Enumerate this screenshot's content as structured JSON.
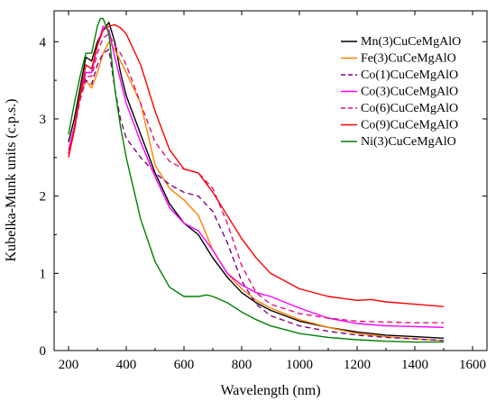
{
  "chart_data": {
    "type": "line",
    "title": "",
    "xlabel": "Wavelength (nm)",
    "ylabel": "Kubelka-Munk units (c.p.s.)",
    "xlim": [
      150,
      1650
    ],
    "ylim": [
      0,
      4.4
    ],
    "xticks": [
      200,
      400,
      600,
      800,
      1000,
      1200,
      1400,
      1600
    ],
    "yticks": [
      0,
      1,
      2,
      3,
      4
    ],
    "grid": false,
    "legend_position": "top-right",
    "series": [
      {
        "name": "Mn(3)CuCeMgAlO",
        "color": "#000000",
        "dash": "solid",
        "points": [
          [
            200,
            2.7
          ],
          [
            220,
            3.0
          ],
          [
            240,
            3.4
          ],
          [
            260,
            3.8
          ],
          [
            280,
            3.75
          ],
          [
            300,
            4.0
          ],
          [
            320,
            4.15
          ],
          [
            340,
            4.25
          ],
          [
            360,
            4.0
          ],
          [
            380,
            3.6
          ],
          [
            400,
            3.3
          ],
          [
            450,
            2.8
          ],
          [
            500,
            2.3
          ],
          [
            550,
            1.9
          ],
          [
            600,
            1.65
          ],
          [
            650,
            1.5
          ],
          [
            700,
            1.2
          ],
          [
            750,
            0.95
          ],
          [
            800,
            0.75
          ],
          [
            850,
            0.62
          ],
          [
            900,
            0.52
          ],
          [
            1000,
            0.38
          ],
          [
            1100,
            0.3
          ],
          [
            1200,
            0.24
          ],
          [
            1300,
            0.2
          ],
          [
            1400,
            0.18
          ],
          [
            1500,
            0.16
          ]
        ]
      },
      {
        "name": "Fe(3)CuCeMgAlO",
        "color": "#ff8000",
        "dash": "solid",
        "points": [
          [
            200,
            2.55
          ],
          [
            220,
            2.9
          ],
          [
            240,
            3.3
          ],
          [
            260,
            3.5
          ],
          [
            280,
            3.4
          ],
          [
            300,
            3.6
          ],
          [
            320,
            3.85
          ],
          [
            340,
            4.0
          ],
          [
            360,
            3.9
          ],
          [
            380,
            3.75
          ],
          [
            400,
            3.6
          ],
          [
            450,
            3.2
          ],
          [
            500,
            2.4
          ],
          [
            550,
            2.1
          ],
          [
            600,
            1.95
          ],
          [
            650,
            1.75
          ],
          [
            700,
            1.3
          ],
          [
            750,
            1.0
          ],
          [
            800,
            0.8
          ],
          [
            850,
            0.65
          ],
          [
            900,
            0.55
          ],
          [
            1000,
            0.4
          ],
          [
            1100,
            0.3
          ],
          [
            1200,
            0.22
          ],
          [
            1300,
            0.18
          ],
          [
            1400,
            0.15
          ],
          [
            1500,
            0.13
          ]
        ]
      },
      {
        "name": "Co(1)CuCeMgAlO",
        "color": "#800080",
        "dash": "dashed",
        "points": [
          [
            200,
            2.55
          ],
          [
            220,
            2.9
          ],
          [
            240,
            3.25
          ],
          [
            260,
            3.5
          ],
          [
            280,
            3.45
          ],
          [
            300,
            3.7
          ],
          [
            320,
            3.85
          ],
          [
            340,
            3.9
          ],
          [
            360,
            3.4
          ],
          [
            380,
            3.0
          ],
          [
            400,
            2.75
          ],
          [
            450,
            2.5
          ],
          [
            500,
            2.3
          ],
          [
            550,
            2.15
          ],
          [
            600,
            2.05
          ],
          [
            650,
            2.0
          ],
          [
            700,
            1.8
          ],
          [
            750,
            1.4
          ],
          [
            800,
            0.9
          ],
          [
            850,
            0.6
          ],
          [
            900,
            0.45
          ],
          [
            1000,
            0.32
          ],
          [
            1100,
            0.25
          ],
          [
            1200,
            0.2
          ],
          [
            1300,
            0.17
          ],
          [
            1400,
            0.15
          ],
          [
            1500,
            0.13
          ]
        ]
      },
      {
        "name": "Co(3)CuCeMgAlO",
        "color": "#ff00ff",
        "dash": "solid",
        "points": [
          [
            200,
            2.6
          ],
          [
            220,
            2.9
          ],
          [
            240,
            3.3
          ],
          [
            260,
            3.6
          ],
          [
            280,
            3.6
          ],
          [
            300,
            3.95
          ],
          [
            320,
            4.2
          ],
          [
            340,
            4.15
          ],
          [
            360,
            3.8
          ],
          [
            380,
            3.5
          ],
          [
            400,
            3.2
          ],
          [
            450,
            2.7
          ],
          [
            500,
            2.25
          ],
          [
            550,
            1.85
          ],
          [
            600,
            1.65
          ],
          [
            650,
            1.55
          ],
          [
            700,
            1.3
          ],
          [
            750,
            1.0
          ],
          [
            800,
            0.85
          ],
          [
            850,
            0.75
          ],
          [
            900,
            0.7
          ],
          [
            1000,
            0.55
          ],
          [
            1100,
            0.42
          ],
          [
            1200,
            0.35
          ],
          [
            1300,
            0.32
          ],
          [
            1400,
            0.31
          ],
          [
            1500,
            0.3
          ]
        ]
      },
      {
        "name": "Co(6)CuCeMgAlO",
        "color": "#e0107a",
        "dash": "dashed",
        "points": [
          [
            200,
            2.55
          ],
          [
            220,
            2.85
          ],
          [
            240,
            3.25
          ],
          [
            260,
            3.55
          ],
          [
            280,
            3.55
          ],
          [
            300,
            3.85
          ],
          [
            320,
            4.05
          ],
          [
            340,
            4.1
          ],
          [
            360,
            3.95
          ],
          [
            380,
            3.85
          ],
          [
            400,
            3.7
          ],
          [
            450,
            3.2
          ],
          [
            500,
            2.7
          ],
          [
            550,
            2.45
          ],
          [
            600,
            2.35
          ],
          [
            650,
            2.3
          ],
          [
            700,
            2.1
          ],
          [
            750,
            1.65
          ],
          [
            800,
            1.1
          ],
          [
            850,
            0.75
          ],
          [
            900,
            0.6
          ],
          [
            1000,
            0.48
          ],
          [
            1100,
            0.42
          ],
          [
            1200,
            0.38
          ],
          [
            1300,
            0.37
          ],
          [
            1400,
            0.36
          ],
          [
            1500,
            0.36
          ]
        ]
      },
      {
        "name": "Co(9)CuCeMgAlO",
        "color": "#ff0000",
        "dash": "solid",
        "points": [
          [
            200,
            2.5
          ],
          [
            220,
            2.85
          ],
          [
            240,
            3.3
          ],
          [
            260,
            3.7
          ],
          [
            280,
            3.65
          ],
          [
            300,
            3.95
          ],
          [
            320,
            4.15
          ],
          [
            340,
            4.2
          ],
          [
            360,
            4.22
          ],
          [
            380,
            4.18
          ],
          [
            400,
            4.1
          ],
          [
            450,
            3.7
          ],
          [
            500,
            3.1
          ],
          [
            550,
            2.6
          ],
          [
            600,
            2.35
          ],
          [
            650,
            2.3
          ],
          [
            700,
            2.05
          ],
          [
            750,
            1.75
          ],
          [
            800,
            1.45
          ],
          [
            850,
            1.2
          ],
          [
            900,
            1.0
          ],
          [
            1000,
            0.8
          ],
          [
            1100,
            0.7
          ],
          [
            1200,
            0.65
          ],
          [
            1250,
            0.66
          ],
          [
            1300,
            0.63
          ],
          [
            1400,
            0.6
          ],
          [
            1500,
            0.57
          ]
        ]
      },
      {
        "name": "Ni(3)CuCeMgAlO",
        "color": "#008000",
        "dash": "solid",
        "points": [
          [
            200,
            2.8
          ],
          [
            220,
            3.2
          ],
          [
            240,
            3.55
          ],
          [
            260,
            3.85
          ],
          [
            280,
            3.85
          ],
          [
            300,
            4.2
          ],
          [
            310,
            4.3
          ],
          [
            320,
            4.3
          ],
          [
            340,
            4.1
          ],
          [
            360,
            3.4
          ],
          [
            380,
            2.9
          ],
          [
            400,
            2.5
          ],
          [
            450,
            1.7
          ],
          [
            500,
            1.15
          ],
          [
            550,
            0.82
          ],
          [
            600,
            0.7
          ],
          [
            650,
            0.7
          ],
          [
            680,
            0.72
          ],
          [
            700,
            0.7
          ],
          [
            750,
            0.62
          ],
          [
            800,
            0.5
          ],
          [
            850,
            0.4
          ],
          [
            900,
            0.32
          ],
          [
            1000,
            0.22
          ],
          [
            1100,
            0.17
          ],
          [
            1200,
            0.14
          ],
          [
            1300,
            0.12
          ],
          [
            1400,
            0.11
          ],
          [
            1500,
            0.11
          ]
        ]
      }
    ]
  }
}
